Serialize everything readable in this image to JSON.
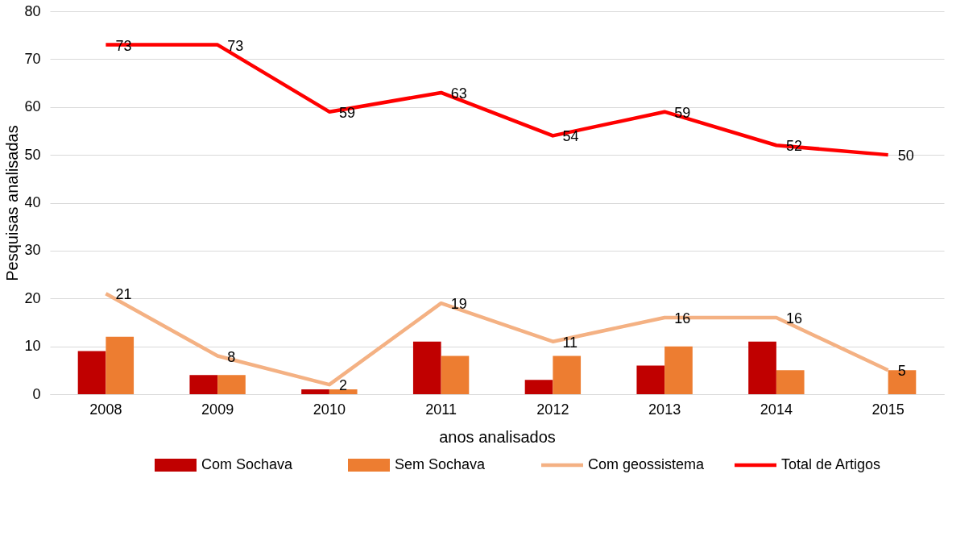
{
  "chart_data": {
    "type": "bar",
    "xlabel": "anos analisados",
    "ylabel": "Pesquisas analisadas",
    "categories": [
      "2008",
      "2009",
      "2010",
      "2011",
      "2012",
      "2013",
      "2014",
      "2015"
    ],
    "series": [
      {
        "name": "Com Sochava",
        "color": "#c00000",
        "values": [
          9,
          4,
          1,
          11,
          3,
          6,
          11,
          0
        ]
      },
      {
        "name": "Sem Sochava",
        "color": "#ed7d31",
        "values": [
          12,
          4,
          1,
          8,
          8,
          10,
          5,
          5
        ]
      },
      {
        "name": "Com geossistema",
        "type": "line",
        "color": "#f4b183",
        "values": [
          21,
          8,
          2,
          19,
          11,
          16,
          16,
          5
        ],
        "value_labels": [
          "21",
          "8",
          "2",
          "19",
          "11",
          "16",
          "16",
          "5"
        ]
      },
      {
        "name": "Total de Artigos",
        "type": "line",
        "color": "#ff0000",
        "values": [
          73,
          73,
          59,
          63,
          54,
          59,
          52,
          50
        ],
        "value_labels": [
          "73",
          "73",
          "59",
          "63",
          "54",
          "59",
          "52",
          "50"
        ]
      }
    ],
    "ylim": [
      0,
      80
    ],
    "yticks": [
      0,
      10,
      20,
      30,
      40,
      50,
      60,
      70,
      80
    ],
    "grid": "y",
    "legend": "bottom",
    "marker": "none",
    "line_style": "solid"
  }
}
